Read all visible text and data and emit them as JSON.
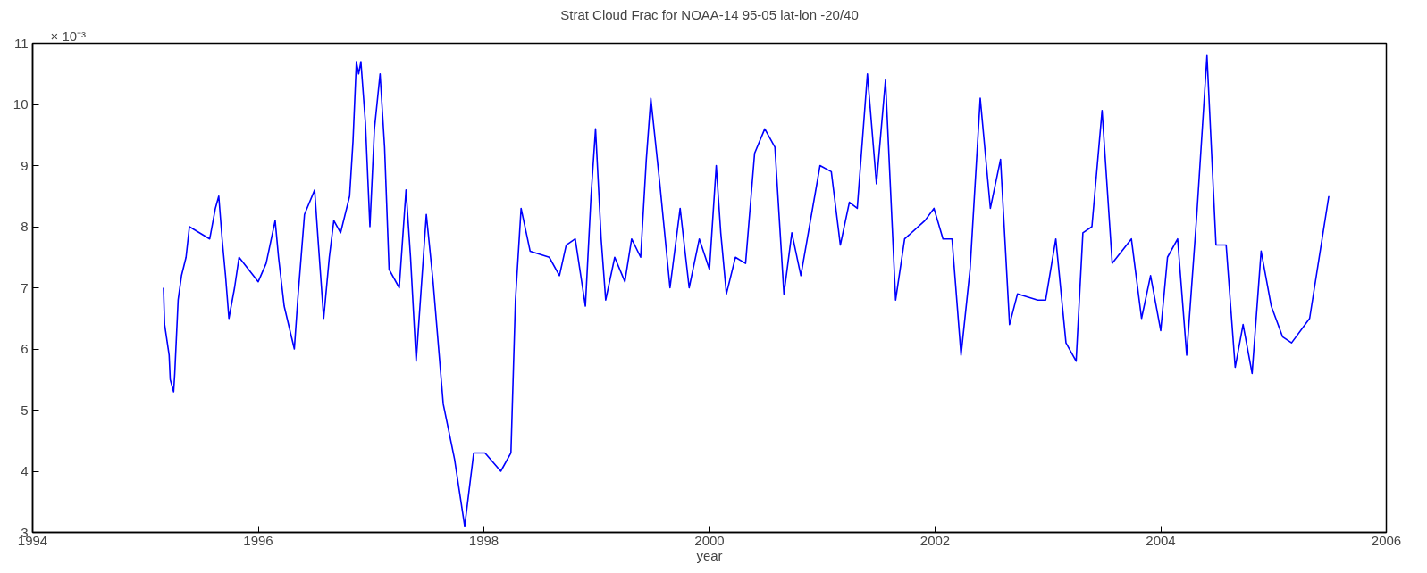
{
  "chart_data": {
    "type": "line",
    "title": "Strat Cloud Frac for NOAA-14 95-05 lat-lon -20/40",
    "xlabel": "year",
    "annotations": [
      "× 10⁻³"
    ],
    "xlim": [
      1994,
      2006
    ],
    "xticks": [
      1994,
      1996,
      1998,
      2000,
      2002,
      2004,
      2006
    ],
    "ylim": [
      3,
      11
    ],
    "yticks": [
      3,
      4,
      5,
      6,
      7,
      8,
      9,
      10,
      11
    ],
    "grid": false,
    "marker": "none",
    "line_style": "solid",
    "series": [
      {
        "color": "#0000ff",
        "x": [
          1995.16,
          1995.17,
          1995.21,
          1995.22,
          1995.25,
          1995.26,
          1995.29,
          1995.32,
          1995.36,
          1995.39,
          1995.57,
          1995.62,
          1995.65,
          1995.68,
          1995.71,
          1995.74,
          1995.79,
          1995.83,
          1996.0,
          1996.07,
          1996.15,
          1996.18,
          1996.23,
          1996.32,
          1996.35,
          1996.41,
          1996.5,
          1996.53,
          1996.58,
          1996.63,
          1996.67,
          1996.73,
          1996.81,
          1996.84,
          1996.87,
          1996.89,
          1996.91,
          1996.95,
          1996.99,
          1997.03,
          1997.08,
          1997.12,
          1997.16,
          1997.25,
          1997.31,
          1997.35,
          1997.4,
          1997.49,
          1997.55,
          1997.64,
          1997.74,
          1997.83,
          1997.91,
          1998.01,
          1998.15,
          1998.24,
          1998.28,
          1998.33,
          1998.41,
          1998.58,
          1998.67,
          1998.73,
          1998.81,
          1998.9,
          1998.95,
          1998.99,
          1999.04,
          1999.08,
          1999.16,
          1999.25,
          1999.31,
          1999.39,
          1999.44,
          1999.48,
          1999.56,
          1999.65,
          1999.74,
          1999.82,
          1999.91,
          2000.0,
          2000.06,
          2000.1,
          2000.15,
          2000.23,
          2000.32,
          2000.4,
          2000.49,
          2000.58,
          2000.66,
          2000.73,
          2000.81,
          2000.98,
          2001.08,
          2001.16,
          2001.24,
          2001.31,
          2001.4,
          2001.48,
          2001.56,
          2001.65,
          2001.73,
          2001.91,
          2001.99,
          2002.07,
          2002.15,
          2002.23,
          2002.31,
          2002.4,
          2002.49,
          2002.58,
          2002.66,
          2002.73,
          2002.91,
          2002.98,
          2003.07,
          2003.16,
          2003.25,
          2003.31,
          2003.39,
          2003.48,
          2003.57,
          2003.74,
          2003.83,
          2003.91,
          2004.0,
          2004.06,
          2004.15,
          2004.23,
          2004.32,
          2004.41,
          2004.49,
          2004.58,
          2004.66,
          2004.73,
          2004.81,
          2004.89,
          2004.98,
          2005.08,
          2005.16,
          2005.32,
          2005.49
        ],
        "values": [
          7.0,
          6.4,
          5.9,
          5.5,
          5.3,
          5.6,
          6.8,
          7.2,
          7.5,
          8.0,
          7.8,
          8.3,
          8.5,
          7.8,
          7.2,
          6.5,
          7.0,
          7.5,
          7.1,
          7.4,
          8.1,
          7.5,
          6.7,
          6.0,
          6.8,
          8.2,
          8.6,
          7.8,
          6.5,
          7.5,
          8.1,
          7.9,
          8.5,
          9.4,
          10.7,
          10.5,
          10.7,
          9.7,
          8.0,
          9.6,
          10.5,
          9.3,
          7.3,
          7.0,
          8.6,
          7.5,
          5.8,
          8.2,
          7.1,
          5.1,
          4.2,
          3.1,
          4.3,
          4.3,
          4.0,
          4.3,
          6.8,
          8.3,
          7.6,
          7.5,
          7.2,
          7.7,
          7.8,
          6.7,
          8.5,
          9.6,
          7.8,
          6.8,
          7.5,
          7.1,
          7.8,
          7.5,
          9.1,
          10.1,
          8.7,
          7.0,
          8.3,
          7.0,
          7.8,
          7.3,
          9.0,
          7.9,
          6.9,
          7.5,
          7.4,
          9.2,
          9.6,
          9.3,
          6.9,
          7.9,
          7.2,
          9.0,
          8.9,
          7.7,
          8.4,
          8.3,
          10.5,
          8.7,
          10.4,
          6.8,
          7.8,
          8.1,
          8.3,
          7.8,
          7.8,
          5.9,
          7.3,
          10.1,
          8.3,
          9.1,
          6.4,
          6.9,
          6.8,
          6.8,
          7.8,
          6.1,
          5.8,
          7.9,
          8.0,
          9.9,
          7.4,
          7.8,
          6.5,
          7.2,
          6.3,
          7.5,
          7.8,
          5.9,
          8.2,
          10.8,
          7.7,
          7.7,
          5.7,
          6.4,
          5.6,
          7.6,
          6.7,
          6.2,
          6.1,
          6.5,
          8.5
        ]
      }
    ]
  }
}
